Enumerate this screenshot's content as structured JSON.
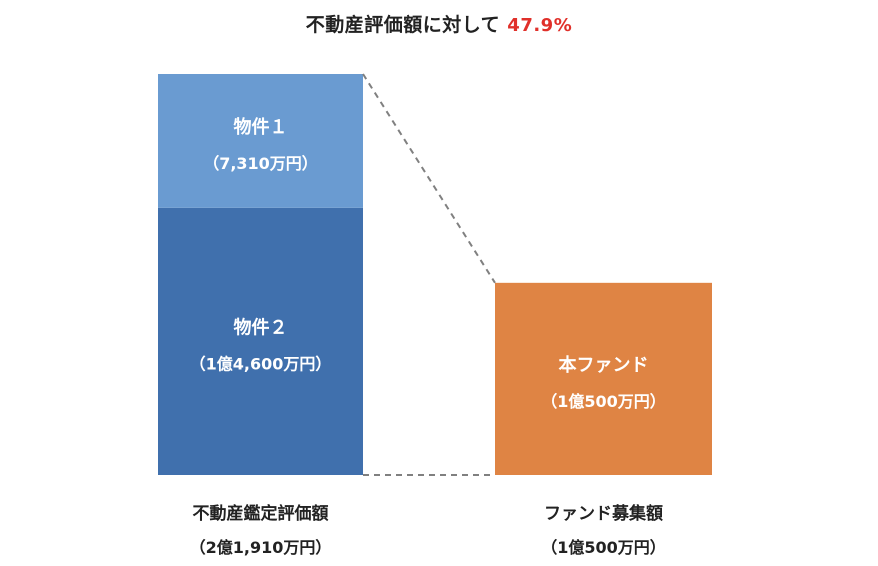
{
  "title": {
    "text": "不動産評価額に対して",
    "percent": "47.9%",
    "percent_color": "#e0302a"
  },
  "chart_data": {
    "type": "bar",
    "stacked": true,
    "ylim": [
      0,
      21910
    ],
    "unit": "万円",
    "categories": [
      {
        "label": "不動産鑑定評価額",
        "sublabel": "（2億1,910万円）",
        "total": 21910
      },
      {
        "label": "ファンド募集額",
        "sublabel": "（1億500万円）",
        "total": 10500
      }
    ],
    "segments": [
      {
        "category": 0,
        "name": "物件１",
        "value_label": "（7,310万円）",
        "value": 7310,
        "color": "#6a9bd1",
        "text_color": "#ffffff"
      },
      {
        "category": 0,
        "name": "物件２",
        "value_label": "（1億4,600万円）",
        "value": 14600,
        "color": "#4070ad",
        "text_color": "#ffffff"
      },
      {
        "category": 1,
        "name": "本ファンド",
        "value_label": "（1億500万円）",
        "value": 10500,
        "color": "#df8444",
        "text_color": "#ffffff"
      }
    ],
    "connector_color": "#808080",
    "connector_style": "dashed"
  }
}
